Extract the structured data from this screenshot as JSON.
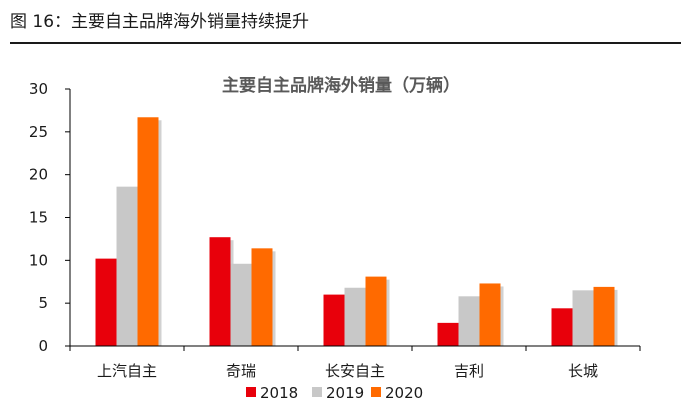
{
  "figure": {
    "caption": "图 16：主要自主品牌海外销量持续提升"
  },
  "chart_data": {
    "type": "bar",
    "title": "主要自主品牌海外销量（万辆）",
    "xlabel": "",
    "ylabel": "",
    "ylim": [
      0,
      30
    ],
    "yticks": [
      0,
      5,
      10,
      15,
      20,
      25,
      30
    ],
    "grid": false,
    "legend_position": "bottom",
    "categories": [
      "上汽自主",
      "奇瑞",
      "长安自主",
      "吉利",
      "长城"
    ],
    "series": [
      {
        "name": "2018",
        "color": "#e8000b",
        "values": [
          10.2,
          12.7,
          6.0,
          2.7,
          4.4
        ]
      },
      {
        "name": "2019",
        "color": "#c8c8c8",
        "values": [
          18.6,
          9.6,
          6.8,
          5.8,
          6.5
        ]
      },
      {
        "name": "2020",
        "color": "#ff6a00",
        "values": [
          26.7,
          11.4,
          8.1,
          7.3,
          6.9
        ]
      }
    ]
  }
}
